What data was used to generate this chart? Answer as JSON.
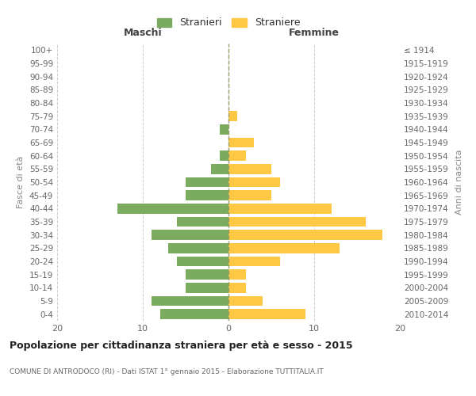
{
  "age_groups_bottom_to_top": [
    "0-4",
    "5-9",
    "10-14",
    "15-19",
    "20-24",
    "25-29",
    "30-34",
    "35-39",
    "40-44",
    "45-49",
    "50-54",
    "55-59",
    "60-64",
    "65-69",
    "70-74",
    "75-79",
    "80-84",
    "85-89",
    "90-94",
    "95-99",
    "100+"
  ],
  "birth_years_bottom_to_top": [
    "2010-2014",
    "2005-2009",
    "2000-2004",
    "1995-1999",
    "1990-1994",
    "1985-1989",
    "1980-1984",
    "1975-1979",
    "1970-1974",
    "1965-1969",
    "1960-1964",
    "1955-1959",
    "1950-1954",
    "1945-1949",
    "1940-1944",
    "1935-1939",
    "1930-1934",
    "1925-1929",
    "1920-1924",
    "1915-1919",
    "≤ 1914"
  ],
  "maschi_bottom_to_top": [
    8,
    9,
    5,
    5,
    6,
    7,
    9,
    6,
    13,
    5,
    5,
    2,
    1,
    0,
    1,
    0,
    0,
    0,
    0,
    0,
    0
  ],
  "femmine_bottom_to_top": [
    9,
    4,
    2,
    2,
    6,
    13,
    18,
    16,
    12,
    5,
    6,
    5,
    2,
    3,
    0,
    1,
    0,
    0,
    0,
    0,
    0
  ],
  "color_maschi": "#7aab5e",
  "color_femmine": "#ffc844",
  "title_main": "Popolazione per cittadinanza straniera per età e sesso - 2015",
  "subtitle": "COMUNE DI ANTRODOCO (RI) - Dati ISTAT 1° gennaio 2015 - Elaborazione TUTTITALIA.IT",
  "xlabel_left": "Maschi",
  "xlabel_right": "Femmine",
  "ylabel_left": "Fasce di età",
  "ylabel_right": "Anni di nascita",
  "legend_maschi": "Stranieri",
  "legend_femmine": "Straniere",
  "xlim": [
    -20,
    20
  ],
  "xticks": [
    -20,
    -10,
    0,
    10,
    20
  ],
  "xtick_labels": [
    "20",
    "10",
    "0",
    "10",
    "20"
  ],
  "bg_color": "#ffffff",
  "grid_color": "#cccccc",
  "bar_height": 0.75
}
